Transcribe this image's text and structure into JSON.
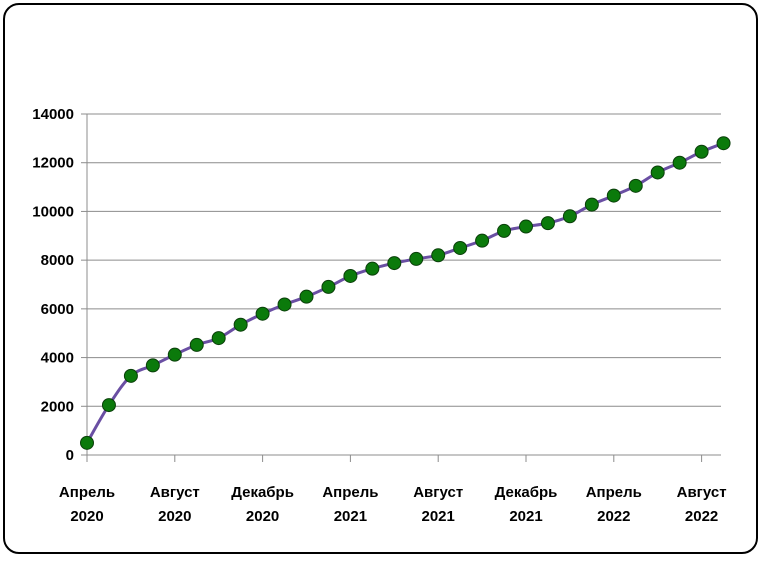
{
  "chart_data": {
    "type": "line",
    "title": "",
    "xlabel": "",
    "ylabel": "",
    "ylim": [
      0,
      14000
    ],
    "yticks": [
      0,
      2000,
      4000,
      6000,
      8000,
      10000,
      12000,
      14000
    ],
    "grid": "horizontal",
    "legend": "none",
    "line_color": "#6a4fa3",
    "marker_color": "#0b7a0b",
    "x_tick_labels": [
      {
        "index": 0,
        "line1": "Апрель",
        "line2": "2020"
      },
      {
        "index": 4,
        "line1": "Август",
        "line2": "2020"
      },
      {
        "index": 8,
        "line1": "Декабрь",
        "line2": "2020"
      },
      {
        "index": 12,
        "line1": "Апрель",
        "line2": "2021"
      },
      {
        "index": 16,
        "line1": "Август",
        "line2": "2021"
      },
      {
        "index": 20,
        "line1": "Декабрь",
        "line2": "2021"
      },
      {
        "index": 24,
        "line1": "Апрель",
        "line2": "2022"
      },
      {
        "index": 28,
        "line1": "Август",
        "line2": "2022"
      }
    ],
    "categories": [
      "2020-04",
      "2020-05",
      "2020-06",
      "2020-07",
      "2020-08",
      "2020-09",
      "2020-10",
      "2020-11",
      "2020-12",
      "2021-01",
      "2021-02",
      "2021-03",
      "2021-04",
      "2021-05",
      "2021-06",
      "2021-07",
      "2021-08",
      "2021-09",
      "2021-10",
      "2021-11",
      "2021-12",
      "2022-01",
      "2022-02",
      "2022-03",
      "2022-04",
      "2022-05",
      "2022-06",
      "2022-07",
      "2022-08",
      "2022-09"
    ],
    "values": [
      500,
      2050,
      3250,
      3680,
      4120,
      4520,
      4800,
      5350,
      5800,
      6180,
      6500,
      6900,
      7350,
      7650,
      7880,
      8050,
      8200,
      8500,
      8800,
      9200,
      9380,
      9520,
      9800,
      10280,
      10650,
      11050,
      11600,
      12000,
      12450,
      12800
    ]
  }
}
